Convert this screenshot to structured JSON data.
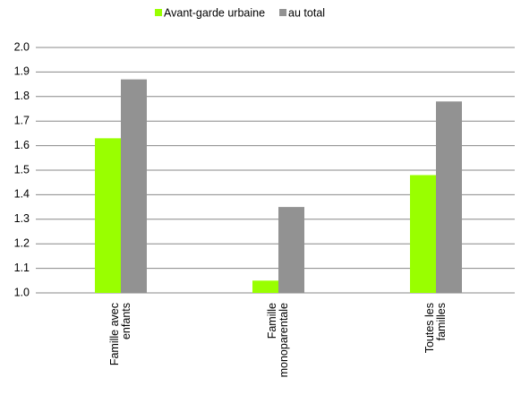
{
  "chart_data": {
    "type": "bar",
    "categories": [
      [
        "Famille avec",
        "enfants"
      ],
      [
        "Famille",
        "monoparentale"
      ],
      [
        "Toutes les",
        "familles"
      ]
    ],
    "series": [
      {
        "name": "Avant-garde urbaine",
        "color": "#99ff00",
        "values": [
          1.63,
          1.05,
          1.48
        ]
      },
      {
        "name": "au total",
        "color": "#929292",
        "values": [
          1.87,
          1.35,
          1.78
        ]
      }
    ],
    "ylim": [
      1,
      2
    ],
    "yticks": [
      {
        "value": 1,
        "label": "1.0"
      },
      1.1,
      1.2,
      1.3,
      1.4,
      1.5,
      1.6,
      1.7,
      1.8,
      1.9,
      {
        "value": 2,
        "label": "2.0"
      }
    ],
    "grid": true,
    "legend": "top"
  }
}
